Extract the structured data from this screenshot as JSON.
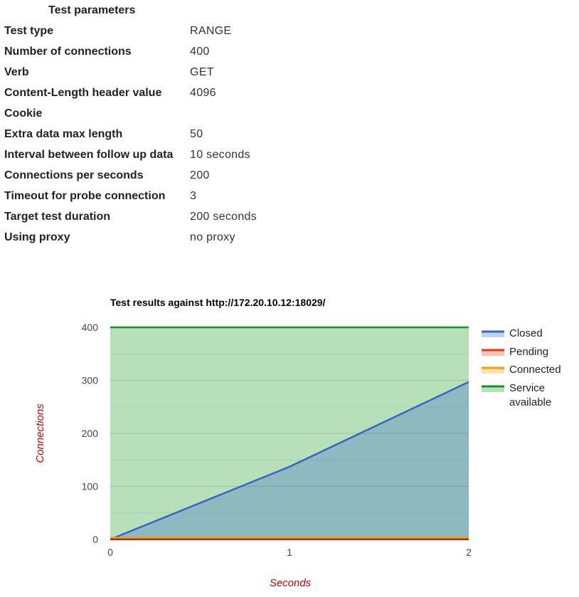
{
  "params": {
    "title": "Test parameters",
    "rows": [
      {
        "name": "Test type",
        "value": "RANGE"
      },
      {
        "name": "Number of connections",
        "value": "400"
      },
      {
        "name": "Verb",
        "value": "GET"
      },
      {
        "name": "Content-Length header value",
        "value": "4096"
      },
      {
        "name": "Cookie",
        "value": ""
      },
      {
        "name": "Extra data max length",
        "value": "50"
      },
      {
        "name": "Interval between follow up data",
        "value": "10 seconds"
      },
      {
        "name": "Connections per seconds",
        "value": "200"
      },
      {
        "name": "Timeout for probe connection",
        "value": "3"
      },
      {
        "name": "Target test duration",
        "value": "200 seconds"
      },
      {
        "name": "Using proxy",
        "value": "no proxy"
      }
    ]
  },
  "chart_data": {
    "type": "area",
    "title": "Test results against http://172.20.10.12:18029/",
    "xlabel": "Seconds",
    "ylabel": "Connections",
    "x": [
      0,
      1,
      2
    ],
    "xticks": [
      "0",
      "1",
      "2"
    ],
    "ylim": [
      0,
      400
    ],
    "yticks": [
      0,
      100,
      200,
      300,
      400
    ],
    "grid": true,
    "legend_position": "right",
    "series": [
      {
        "name": "Closed",
        "values": [
          0,
          137,
          297
        ],
        "color": "#3366cc",
        "fill": "#7fb0c8"
      },
      {
        "name": "Pending",
        "values": [
          0,
          0,
          0
        ],
        "color": "#dc3912",
        "fill": "#f2b8a8"
      },
      {
        "name": "Connected",
        "values": [
          3,
          3,
          3
        ],
        "color": "#ff9900",
        "fill": "#ffd59a"
      },
      {
        "name": "Service available",
        "values": [
          400,
          400,
          400
        ],
        "color": "#109618",
        "fill": "#b7e1b4"
      }
    ]
  }
}
